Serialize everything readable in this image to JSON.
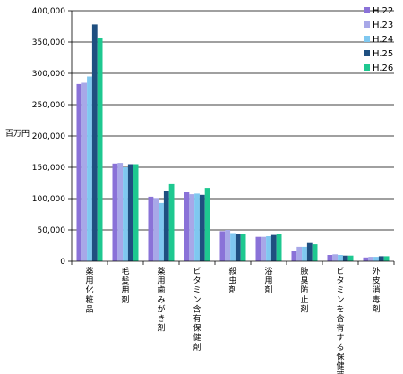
{
  "chart_data": {
    "type": "bar",
    "ylabel": "百万円",
    "ylim": [
      0,
      400000
    ],
    "yticks": [
      0,
      50000,
      100000,
      150000,
      200000,
      250000,
      300000,
      350000,
      400000
    ],
    "ytick_labels": [
      "0",
      "50,000",
      "100,000",
      "150,000",
      "200,000",
      "250,000",
      "300,000",
      "350,000",
      "400,000"
    ],
    "grid": true,
    "legend_position": "top-right",
    "categories": [
      "薬用化粧品",
      "毛髪用剤",
      "薬用歯みがき剤",
      "ビタミン含有保健剤",
      "殺虫剤",
      "浴用剤",
      "腋臭防止剤",
      "ビタミンを含有する保健薬",
      "外皮消毒剤"
    ],
    "series": [
      {
        "name": "H.22",
        "color": "#8a72d8",
        "values": [
          283000,
          156000,
          103000,
          110000,
          48000,
          39000,
          17000,
          10000,
          6000
        ]
      },
      {
        "name": "H.23",
        "color": "#a8a8e8",
        "values": [
          285000,
          157000,
          101000,
          107000,
          50000,
          39000,
          23000,
          11000,
          7000
        ]
      },
      {
        "name": "H.24",
        "color": "#7fc8f0",
        "values": [
          295000,
          150000,
          93000,
          108000,
          45000,
          40000,
          23000,
          10000,
          7000
        ]
      },
      {
        "name": "H.25",
        "color": "#1f4f80",
        "values": [
          378000,
          155000,
          112000,
          106000,
          44000,
          42000,
          29000,
          9000,
          8000
        ]
      },
      {
        "name": "H.26",
        "color": "#1ec890",
        "values": [
          356000,
          155000,
          123000,
          117000,
          43000,
          43000,
          27000,
          9000,
          8000
        ]
      }
    ]
  }
}
